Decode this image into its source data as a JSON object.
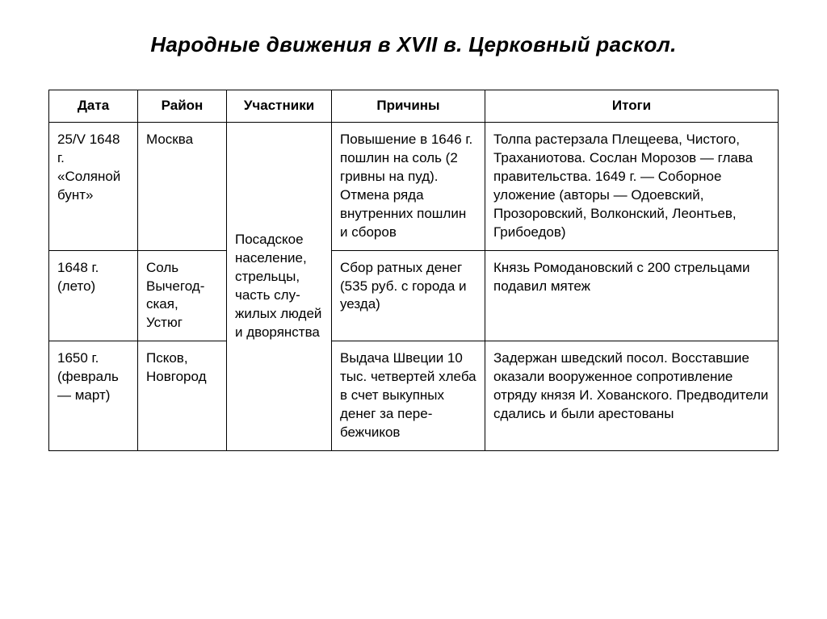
{
  "title": "Народные движения в XVII в.  Церковный раскол.",
  "table": {
    "columns": [
      "Дата",
      "Район",
      "Участники",
      "Причины",
      "Итоги"
    ],
    "participants_merged": "Посадское население, стрельцы, часть слу­жилых лю­дей и дво­рянства",
    "rows": [
      {
        "date": "25/V 1648 г. «Соляной бунт»",
        "region": "Москва",
        "causes": "Повышение в 1646 г. по­шлин на соль (2 гривны на пуд). Отмена ряда внутрен­них пошлин и сборов",
        "results": "Толпа растерзала Пле­щеева, Чистого, Траха­ниотова. Сослан Моро­зов — глава правитель­ства. 1649 г. — Собор­ное уложение (авторы — Одоевский, Прозоров­ский, Волконский, Леон­тьев, Грибоедов)"
      },
      {
        "date": "1648 г. (лето)",
        "region": "Соль Вычегод­ская, Устюг",
        "causes": "Сбор ратных денег (535 руб. с города и уезда)",
        "results": "Князь Ромодановский с 200 стрельцами пода­вил мятеж"
      },
      {
        "date": "1650 г. (февраль — март)",
        "region": "Псков, Новго­род",
        "causes": "Выдача Шве­ции 10 тыс. чет­вертей хлеба в счет выкупных денег за пере­бежчиков",
        "results": "Задержан шведский по­сол. Восставшие оказали вооруженное сопротивле­ние отряду князя И. Хован­ского. Предводители сда­лись и были арестованы"
      }
    ]
  }
}
